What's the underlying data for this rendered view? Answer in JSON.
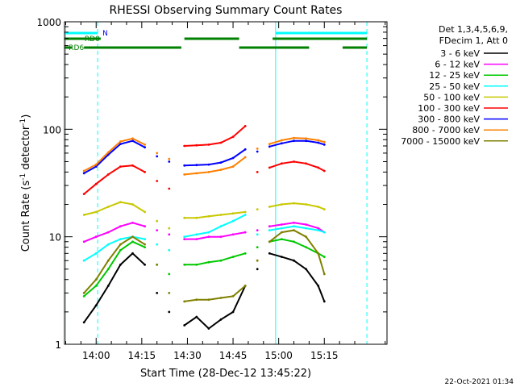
{
  "chart_data": {
    "type": "line",
    "title": "RHESSI Observing Summary Count Rates",
    "xlabel": "Start Time (28-Dec-12 13:45:22)",
    "ylabel": "Count Rate (s",
    "ylabel_sup": "-1",
    "ylabel_mid": " detector",
    "ylabel_sup2": "-1",
    "ylabel_end": ")",
    "y_scale": "log",
    "ylim": [
      1,
      1000
    ],
    "xlim_minutes": [
      -10.4,
      95.6
    ],
    "x_ticks": [
      {
        "label": "14:00",
        "minute": 0
      },
      {
        "label": "14:15",
        "minute": 15
      },
      {
        "label": "14:30",
        "minute": 30
      },
      {
        "label": "14:45",
        "minute": 45
      },
      {
        "label": "15:00",
        "minute": 60
      },
      {
        "label": "15:15",
        "minute": 75
      }
    ],
    "y_ticks": [
      {
        "label": "1",
        "value": 1
      },
      {
        "label": "10",
        "value": 10
      },
      {
        "label": "100",
        "value": 100
      },
      {
        "label": "1000",
        "value": 1000
      }
    ],
    "legend_header": [
      "Det 1,3,4,5,6,9,",
      "FDecim 1, Att 0"
    ],
    "legend_position": "top-right",
    "timestamp": "22-Oct-2021 01:34",
    "segments_minutes": [
      [
        -4,
        16
      ],
      [
        29,
        49
      ],
      [
        57,
        75
      ]
    ],
    "x_minutes": [
      -4,
      0,
      4,
      8,
      12,
      16,
      20,
      24,
      29,
      33,
      37,
      41,
      45,
      49,
      53,
      57,
      61,
      65,
      69,
      73,
      75
    ],
    "series": [
      {
        "name": "3 - 6 keV",
        "color": "#000000",
        "values": [
          1.6,
          2.3,
          3.5,
          5.5,
          7.0,
          5.5,
          3.0,
          2.0,
          1.5,
          1.8,
          1.4,
          1.7,
          2.0,
          3.5,
          5.0,
          7.0,
          6.5,
          6.0,
          5.0,
          3.5,
          2.5
        ]
      },
      {
        "name": "6 - 12 keV",
        "color": "#ff00ff",
        "values": [
          9.0,
          10.0,
          11.0,
          12.5,
          13.5,
          12.5,
          11.5,
          10.5,
          9.5,
          9.5,
          10.0,
          10.0,
          10.5,
          11.0,
          11.5,
          12.5,
          13.0,
          13.5,
          13.0,
          12.0,
          11.0
        ]
      },
      {
        "name": "12 - 25 keV",
        "color": "#00c800",
        "values": [
          2.8,
          3.5,
          5.0,
          7.5,
          9.0,
          8.0,
          5.5,
          4.5,
          5.5,
          5.5,
          5.8,
          6.0,
          6.5,
          7.0,
          8.0,
          9.0,
          9.5,
          9.0,
          8.0,
          7.0,
          6.5
        ]
      },
      {
        "name": "25 - 50 keV",
        "color": "#00ffff",
        "values": [
          6.0,
          7.0,
          8.5,
          9.5,
          10.0,
          9.5,
          8.5,
          7.5,
          10.0,
          10.5,
          11.0,
          12.5,
          14.0,
          16.0,
          10.5,
          11.5,
          12.0,
          12.5,
          12.0,
          11.5,
          11.0
        ]
      },
      {
        "name": "50 - 100 keV",
        "color": "#c8c800",
        "values": [
          16.0,
          17.0,
          19.0,
          21.0,
          20.0,
          17.0,
          14.0,
          12.0,
          15.0,
          15.0,
          15.5,
          16.0,
          16.5,
          17.0,
          18.0,
          19.0,
          20.0,
          20.5,
          20.0,
          19.0,
          18.0
        ]
      },
      {
        "name": "100 - 300 keV",
        "color": "#ff0000",
        "values": [
          25.0,
          31.0,
          38.0,
          45.0,
          46.0,
          40.0,
          33.0,
          28.0,
          70.0,
          71.0,
          72.0,
          75.0,
          85.0,
          107.0,
          40.0,
          44.0,
          48.0,
          50.0,
          48.0,
          44.0,
          41.0
        ]
      },
      {
        "name": "300 - 800 keV",
        "color": "#0000ff",
        "values": [
          39.0,
          45.0,
          58.0,
          73.0,
          78.0,
          68.0,
          56.0,
          50.0,
          46.0,
          46.5,
          47.0,
          49.0,
          54.0,
          65.0,
          62.0,
          69.0,
          74.0,
          78.0,
          78.0,
          75.0,
          72.0
        ]
      },
      {
        "name": "800 - 7000 keV",
        "color": "#ff8000",
        "values": [
          41.0,
          47.0,
          61.0,
          77.0,
          82.0,
          72.0,
          60.0,
          53.0,
          38.0,
          39.0,
          40.0,
          42.0,
          45.0,
          55.0,
          66.0,
          73.0,
          79.0,
          83.0,
          82.0,
          79.0,
          76.0
        ]
      },
      {
        "name": "7000 - 15000 keV",
        "color": "#808000",
        "values": [
          3.0,
          4.0,
          6.0,
          8.5,
          10.0,
          8.5,
          5.5,
          3.0,
          2.5,
          2.6,
          2.6,
          2.7,
          2.8,
          3.5,
          6.0,
          9.0,
          11.0,
          11.5,
          10.0,
          7.0,
          4.5
        ]
      }
    ],
    "flags": {
      "cyan_label": "N",
      "rd0_label": "RD0",
      "rd6_label": "RD6",
      "cyan_color": "#00ffff",
      "green_color": "#008000",
      "cyan_segments_minutes": [
        [
          -10.4,
          0.5
        ],
        [
          59.0,
          89.0
        ]
      ],
      "rd0_segments_minutes": [
        [
          -10.4,
          1.5
        ],
        [
          29.0,
          47.0
        ],
        [
          58.0,
          89.0
        ]
      ],
      "rd6_segments_minutes": [
        [
          -10.4,
          -8.0
        ],
        [
          -4.0,
          28.0
        ],
        [
          47.0,
          70.0
        ],
        [
          81.0,
          89.0
        ]
      ],
      "vline_solid_minutes": [
        -10.0,
        59.0
      ],
      "vline_dashed_minutes": [
        0.5,
        89.0
      ]
    }
  }
}
